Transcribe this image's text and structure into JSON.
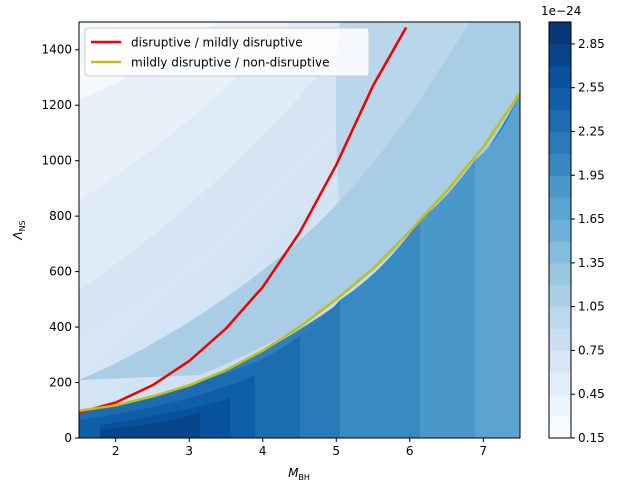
{
  "chart_data": {
    "type": "contour",
    "xlabel": {
      "main": "M",
      "sub": "BH"
    },
    "ylabel": {
      "main": "Λ",
      "sub": "NS"
    },
    "xlim": [
      1.5,
      7.5
    ],
    "ylim": [
      0,
      1500
    ],
    "x_ticks": [
      "2",
      "3",
      "4",
      "5",
      "6",
      "7"
    ],
    "y_ticks": [
      "0",
      "200",
      "400",
      "600",
      "800",
      "1000",
      "1200",
      "1400"
    ],
    "grid": false,
    "legend_placement": "upper-left",
    "series": [
      {
        "name": "disruptive / mildly disruptive",
        "color": "#ee0000",
        "x": [
          1.5,
          2.0,
          2.5,
          3.0,
          3.5,
          4.0,
          4.5,
          5.0,
          5.5,
          5.95
        ],
        "y": [
          92,
          128,
          190,
          278,
          395,
          545,
          740,
          985,
          1270,
          1480
        ]
      },
      {
        "name": "mildly disruptive / non-disruptive",
        "color": "#bfbf1a",
        "x": [
          1.5,
          2.0,
          2.5,
          3.0,
          3.5,
          4.0,
          4.5,
          5.0,
          5.5,
          6.0,
          6.5,
          7.0,
          7.5
        ],
        "y": [
          98,
          118,
          150,
          190,
          245,
          315,
          400,
          500,
          610,
          745,
          890,
          1050,
          1245
        ]
      }
    ],
    "colorbar": {
      "range": [
        0.15,
        3.0
      ],
      "exponent_label": "1e−24",
      "tick_labels": [
        "0.15",
        "0.45",
        "0.75",
        "1.05",
        "1.35",
        "1.65",
        "1.95",
        "2.25",
        "2.55",
        "2.85"
      ],
      "colors": [
        "#f7fbff",
        "#ebf3fb",
        "#e1edf8",
        "#d6e6f4",
        "#cadef0",
        "#bdd7ec",
        "#abd0e6",
        "#9ac8e1",
        "#84bcdb",
        "#6dafd7",
        "#5ba3d0",
        "#4a98c9",
        "#3989c1",
        "#2a7ab9",
        "#1c6cb1",
        "#0f5ea8",
        "#08519c",
        "#084489",
        "#083776"
      ]
    }
  }
}
